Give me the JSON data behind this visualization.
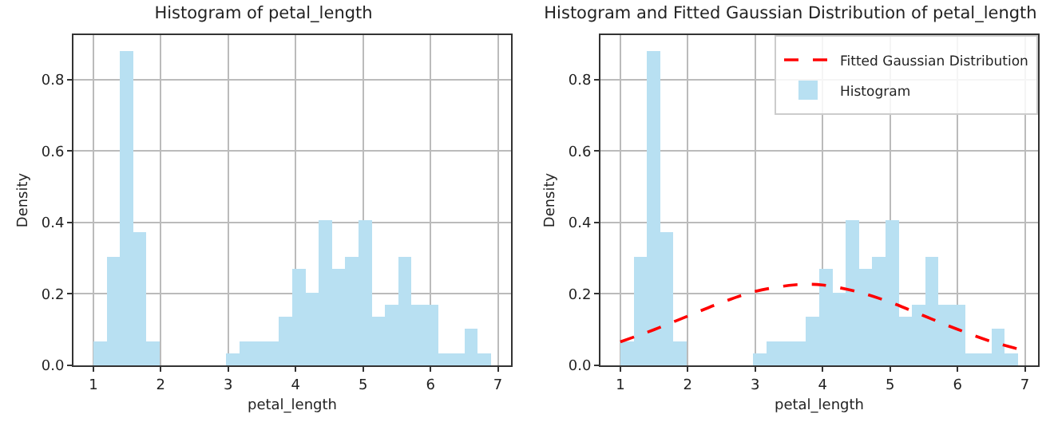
{
  "chart_data": [
    {
      "type": "histogram",
      "title": "Histogram of petal_length",
      "xlabel": "petal_length",
      "ylabel": "Density",
      "bins": [
        1,
        1.1967,
        1.3933,
        1.59,
        1.7867,
        1.9833,
        2.18,
        2.3767,
        2.5733,
        2.77,
        2.9667,
        3.1633,
        3.36,
        3.5567,
        3.7533,
        3.95,
        4.1467,
        4.3433,
        4.54,
        4.7367,
        4.9333,
        5.13,
        5.3267,
        5.5233,
        5.72,
        5.9167,
        6.1133,
        6.31,
        6.5067,
        6.7033,
        6.9
      ],
      "values": [
        0.068,
        0.305,
        0.881,
        0.373,
        0.068,
        0,
        0,
        0,
        0,
        0,
        0.034,
        0.068,
        0.068,
        0.068,
        0.136,
        0.271,
        0.203,
        0.407,
        0.271,
        0.305,
        0.407,
        0.136,
        0.169,
        0.305,
        0.169,
        0.169,
        0.034,
        0.034,
        0.102,
        0.034
      ],
      "color": "#b8e0f2",
      "xlim": [
        0.705,
        7.195
      ],
      "ylim": [
        0,
        0.925
      ],
      "xticks": [
        1,
        2,
        3,
        4,
        5,
        6,
        7
      ],
      "yticks": [
        {
          "value": 0,
          "label": "0.0"
        },
        {
          "value": 0.2,
          "label": "0.2"
        },
        {
          "value": 0.4,
          "label": "0.4"
        },
        {
          "value": 0.6,
          "label": "0.6"
        },
        {
          "value": 0.8,
          "label": "0.8"
        }
      ],
      "grid": true
    },
    {
      "type": "histogram",
      "title": "Histogram and Fitted Gaussian Distribution of petal_length",
      "xlabel": "petal_length",
      "ylabel": "Density",
      "bins": [
        1,
        1.1967,
        1.3933,
        1.59,
        1.7867,
        1.9833,
        2.18,
        2.3767,
        2.5733,
        2.77,
        2.9667,
        3.1633,
        3.36,
        3.5567,
        3.7533,
        3.95,
        4.1467,
        4.3433,
        4.54,
        4.7367,
        4.9333,
        5.13,
        5.3267,
        5.5233,
        5.72,
        5.9167,
        6.1133,
        6.31,
        6.5067,
        6.7033,
        6.9
      ],
      "series": [
        {
          "name": "Fitted Gaussian Distribution",
          "type": "line",
          "color": "#ff0000",
          "line_style": "dashed",
          "x": [
            1,
            1.5,
            2,
            2.5,
            3,
            3.5,
            3.758,
            4,
            4.5,
            5,
            5.5,
            6,
            6.5,
            6.9
          ],
          "values": [
            0.066,
            0.1,
            0.138,
            0.176,
            0.207,
            0.224,
            0.227,
            0.225,
            0.207,
            0.177,
            0.139,
            0.101,
            0.067,
            0.046
          ]
        },
        {
          "name": "Histogram",
          "type": "histogram",
          "color": "#b8e0f2",
          "values": [
            0.068,
            0.305,
            0.881,
            0.373,
            0.068,
            0,
            0,
            0,
            0,
            0,
            0.034,
            0.068,
            0.068,
            0.068,
            0.136,
            0.271,
            0.203,
            0.407,
            0.271,
            0.305,
            0.407,
            0.136,
            0.169,
            0.305,
            0.169,
            0.169,
            0.034,
            0.034,
            0.102,
            0.034
          ]
        }
      ],
      "xlim": [
        0.705,
        7.195
      ],
      "ylim": [
        0,
        0.925
      ],
      "xticks": [
        1,
        2,
        3,
        4,
        5,
        6,
        7
      ],
      "yticks": [
        {
          "value": 0,
          "label": "0.0"
        },
        {
          "value": 0.2,
          "label": "0.2"
        },
        {
          "value": 0.4,
          "label": "0.4"
        },
        {
          "value": 0.6,
          "label": "0.6"
        },
        {
          "value": 0.8,
          "label": "0.8"
        }
      ],
      "grid": true,
      "legend": "top right"
    }
  ]
}
